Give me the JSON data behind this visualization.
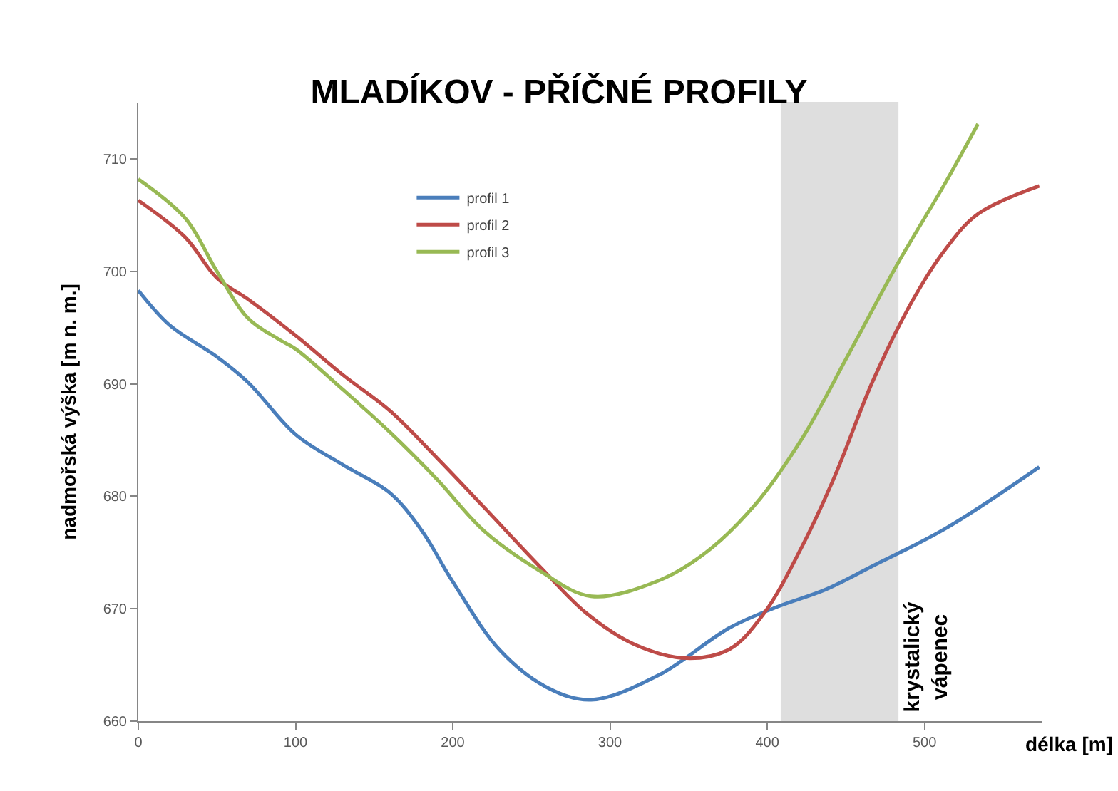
{
  "chart_data": {
    "type": "line",
    "title": "MLADÍKOV - PŘÍČNÉ PROFILY",
    "xlabel": "délka [m]",
    "ylabel": "nadmořská výška [m n. m.]",
    "series": [
      {
        "name": "profil 1",
        "color": "#4a7ebb",
        "x": [
          0,
          20,
          50,
          70,
          100,
          130,
          160,
          180,
          200,
          230,
          260,
          288,
          331,
          376,
          407,
          437,
          467,
          513,
          573
        ],
        "values": [
          698.3,
          695.2,
          692.4,
          690.1,
          685.5,
          682.8,
          680.3,
          677,
          672.4,
          666.3,
          663,
          661.9,
          664.1,
          668.3,
          670.2,
          671.7,
          673.8,
          677.1,
          682.6
        ]
      },
      {
        "name": "profil 2",
        "color": "#be4b48",
        "x": [
          0,
          30,
          50,
          70,
          100,
          130,
          160,
          190,
          220,
          255,
          285,
          316,
          349,
          376,
          398,
          422,
          443,
          467,
          492,
          513,
          534,
          573
        ],
        "values": [
          706.3,
          703,
          699.4,
          697.5,
          694.3,
          690.8,
          687.6,
          683.4,
          679,
          673.8,
          669.6,
          666.8,
          665.6,
          666.4,
          669.6,
          675.5,
          681.8,
          690.2,
          697.3,
          701.9,
          705.1,
          707.6
        ]
      },
      {
        "name": "profil 3",
        "color": "#98b954",
        "x": [
          0,
          30,
          50,
          70,
          90,
          100,
          130,
          160,
          190,
          220,
          255,
          288,
          331,
          361,
          392,
          422,
          452,
          483,
          513,
          534
        ],
        "values": [
          708.2,
          704.7,
          700,
          695.8,
          693.9,
          693.1,
          689.5,
          685.7,
          681.5,
          676.9,
          673.4,
          671.1,
          672.5,
          675,
          679.2,
          685.1,
          692.7,
          700.7,
          707.8,
          713.1
        ]
      }
    ],
    "xlim": [
      0,
      575
    ],
    "xticks": [
      0,
      100,
      200,
      300,
      400,
      500
    ],
    "ylim": [
      660,
      715
    ],
    "yticks": [
      660,
      670,
      680,
      690,
      700,
      710
    ],
    "bands": [
      {
        "axis": "x",
        "from": 409,
        "to": 483,
        "label": "krystalický vápenec",
        "color": "#808080"
      }
    ],
    "grid": false,
    "legend": "top left",
    "marker": "none",
    "line_style": "solid"
  }
}
